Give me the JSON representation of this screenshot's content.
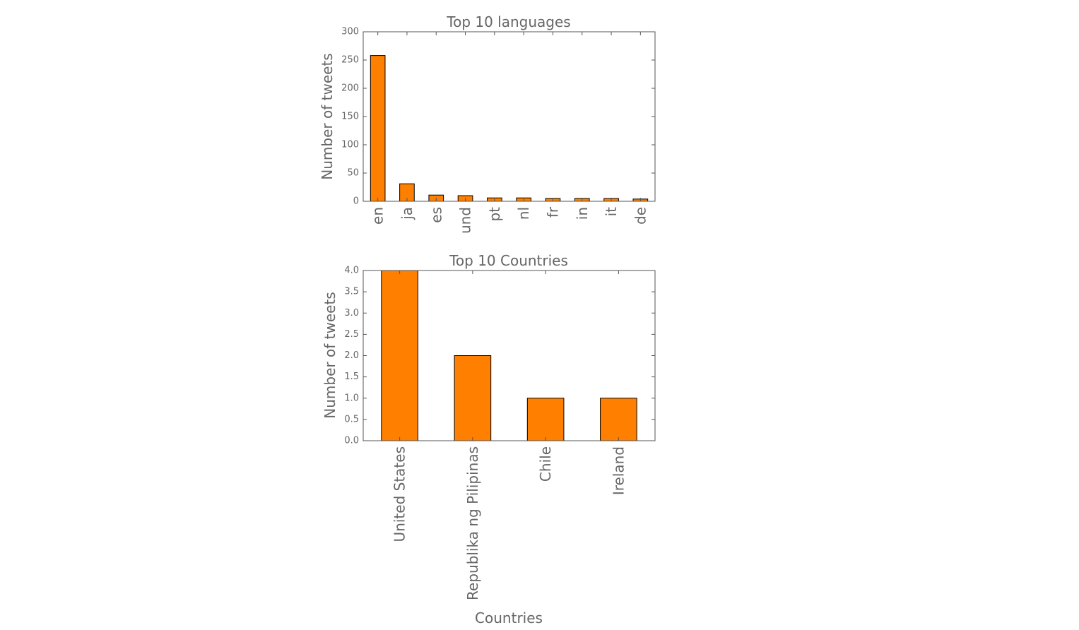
{
  "bar_color": "#ff7f00",
  "chart_data": [
    {
      "type": "bar",
      "title": "Top 10 languages",
      "xlabel": "",
      "ylabel": "Number of tweets",
      "categories": [
        "en",
        "ja",
        "es",
        "und",
        "pt",
        "nl",
        "fr",
        "in",
        "it",
        "de"
      ],
      "values": [
        258,
        31,
        11,
        10,
        6,
        6,
        5,
        5,
        5,
        4
      ],
      "ylim": [
        0,
        300
      ],
      "yticks": [
        0,
        50,
        100,
        150,
        200,
        250,
        300
      ],
      "ytick_labels": [
        "0",
        "50",
        "100",
        "150",
        "200",
        "250",
        "300"
      ],
      "grid": false,
      "legend": "none"
    },
    {
      "type": "bar",
      "title": "Top 10 Countries",
      "xlabel": "Countries",
      "ylabel": "Number of tweets",
      "categories": [
        "United States",
        "Republika ng Pilipinas",
        "Chile",
        "Ireland"
      ],
      "values": [
        4,
        2,
        1,
        1
      ],
      "ylim": [
        0,
        4
      ],
      "yticks": [
        0,
        0.5,
        1,
        1.5,
        2,
        2.5,
        3,
        3.5,
        4
      ],
      "ytick_labels": [
        "0.0",
        "0.5",
        "1.0",
        "1.5",
        "2.0",
        "2.5",
        "3.0",
        "3.5",
        "4.0"
      ],
      "grid": false,
      "legend": "none"
    }
  ]
}
